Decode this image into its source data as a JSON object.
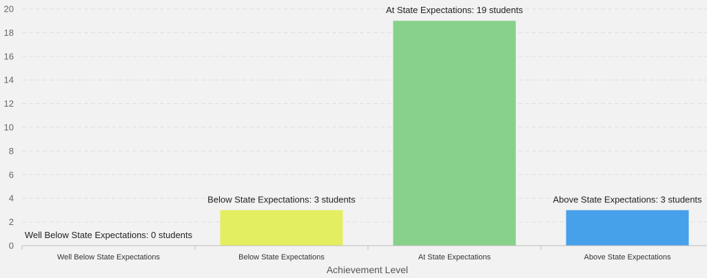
{
  "chart_data": {
    "type": "bar",
    "categories": [
      "Well Below State Expectations",
      "Below State Expectations",
      "At State Expectations",
      "Above State Expectations"
    ],
    "values": [
      0,
      3,
      19,
      3
    ],
    "data_labels": [
      "Well Below State Expectations: 0 students",
      "Below State Expectations: 3 students",
      "At State Expectations: 19 students",
      "Above State Expectations: 3 students"
    ],
    "colors": [
      "#d7dc55",
      "#e4ee61",
      "#88d18a",
      "#46a0ea"
    ],
    "xlabel": "Achievement Level",
    "ylabel": "",
    "ylim": [
      0,
      20
    ],
    "yticks": [
      "0",
      "2",
      "4",
      "6",
      "8",
      "10",
      "12",
      "14",
      "16",
      "18",
      "20"
    ],
    "grid": true
  }
}
